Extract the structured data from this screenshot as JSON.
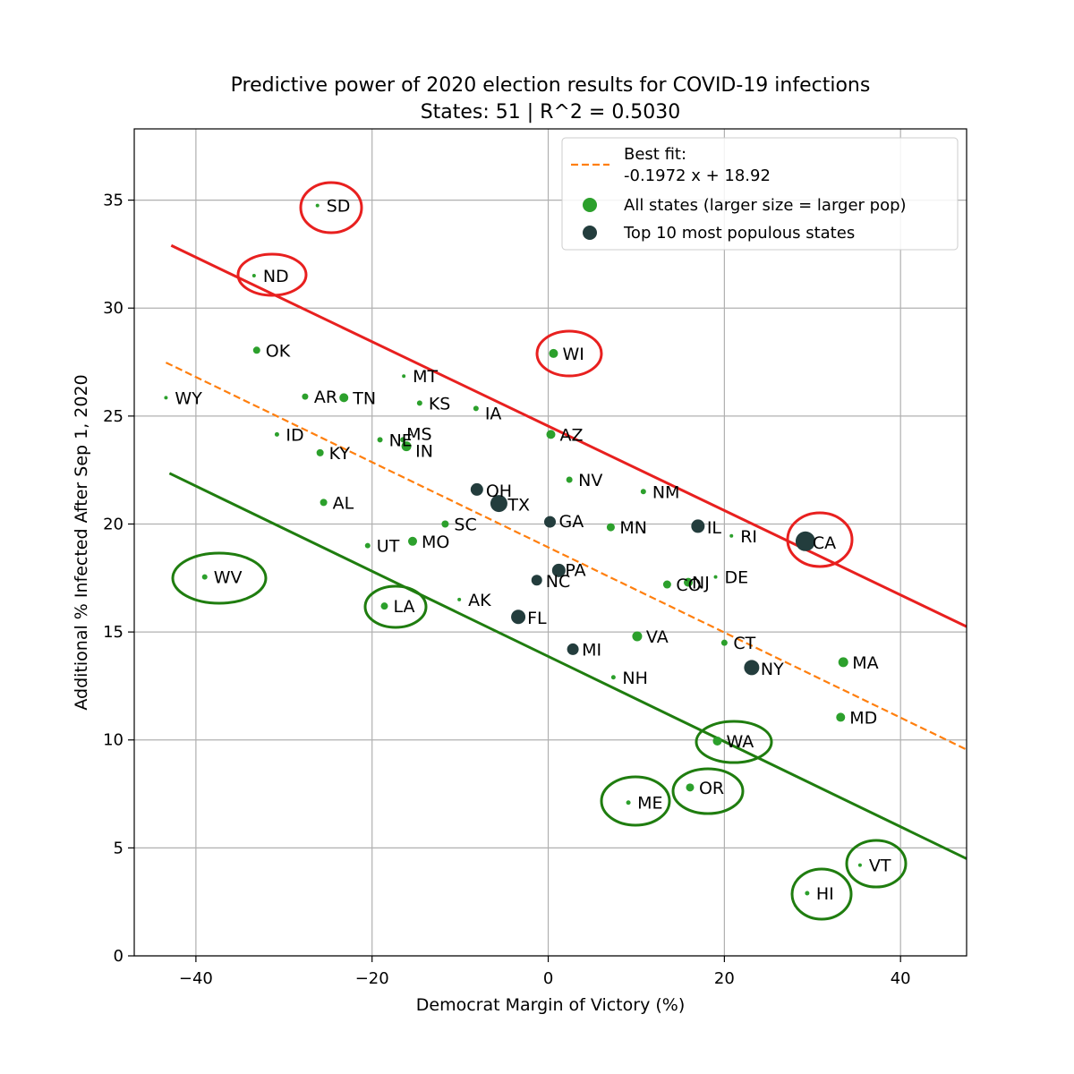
{
  "chart_data": {
    "type": "scatter",
    "title": "Predictive power of 2020 election results for COVID-19 infections",
    "subtitle": "States: 51 | R^2 = 0.5030",
    "xlabel": "Democrat Margin of Victory (%)",
    "ylabel": "Additional % Infected After Sep 1, 2020",
    "xlim": [
      -47,
      47.5
    ],
    "ylim": [
      0,
      38.3
    ],
    "xticks": [
      -40,
      -20,
      0,
      20,
      40
    ],
    "xtick_labels": [
      "−40",
      "−20",
      "0",
      "20",
      "40"
    ],
    "yticks": [
      0,
      5,
      10,
      15,
      20,
      25,
      30,
      35
    ],
    "ytick_labels": [
      "0",
      "5",
      "10",
      "15",
      "20",
      "25",
      "30",
      "35"
    ],
    "grid": true,
    "legend_position": "top-right",
    "legend": {
      "fit_title": "Best fit:",
      "fit_equation": "-0.1972 x + 18.92",
      "all_states": "All states (larger size = larger pop)",
      "top10": "Top 10 most populous states"
    },
    "best_fit": {
      "slope": -0.1972,
      "intercept": 18.92,
      "x_range": [
        -43.4,
        47.5
      ],
      "color": "#ff7f0e"
    },
    "upper_line": {
      "x": [
        -42.8,
        47.5
      ],
      "y": [
        32.9,
        15.25
      ],
      "color": "#e8201f"
    },
    "lower_line": {
      "x": [
        -43.0,
        47.5
      ],
      "y": [
        22.35,
        4.5
      ],
      "color": "#1f7d0f"
    },
    "colors": {
      "all_states": "#2ca02c",
      "top10": "#233d3d",
      "red_annotation": "#e8201f",
      "green_annotation": "#1f7d0f"
    },
    "points": [
      {
        "state": "WY",
        "x": -43.4,
        "y": 25.85,
        "size": 2,
        "top10": false
      },
      {
        "state": "WV",
        "x": -39.0,
        "y": 17.55,
        "size": 3,
        "top10": false
      },
      {
        "state": "ND",
        "x": -33.4,
        "y": 31.5,
        "size": 2,
        "top10": false
      },
      {
        "state": "OK",
        "x": -33.1,
        "y": 28.05,
        "size": 4,
        "top10": false
      },
      {
        "state": "ID",
        "x": -30.8,
        "y": 24.15,
        "size": 2.5,
        "top10": false
      },
      {
        "state": "AR",
        "x": -27.6,
        "y": 25.9,
        "size": 3.5,
        "top10": false
      },
      {
        "state": "SD",
        "x": -26.2,
        "y": 34.75,
        "size": 2,
        "top10": false
      },
      {
        "state": "KY",
        "x": -25.9,
        "y": 23.3,
        "size": 4,
        "top10": false
      },
      {
        "state": "AL",
        "x": -25.5,
        "y": 21.0,
        "size": 4,
        "top10": false
      },
      {
        "state": "TN",
        "x": -23.2,
        "y": 25.85,
        "size": 5,
        "top10": false
      },
      {
        "state": "UT",
        "x": -20.5,
        "y": 19.0,
        "size": 3,
        "top10": false
      },
      {
        "state": "NE",
        "x": -19.1,
        "y": 23.9,
        "size": 3,
        "top10": false
      },
      {
        "state": "LA",
        "x": -18.6,
        "y": 16.2,
        "size": 4,
        "top10": false
      },
      {
        "state": "MT",
        "x": -16.4,
        "y": 26.85,
        "size": 2,
        "top10": false
      },
      {
        "state": "MS",
        "x": -16.5,
        "y": 23.9,
        "size": 3,
        "top10": false
      },
      {
        "state": "IN",
        "x": -16.1,
        "y": 23.6,
        "size": 5.5,
        "top10": false
      },
      {
        "state": "MO",
        "x": -15.4,
        "y": 19.2,
        "size": 5,
        "top10": false
      },
      {
        "state": "KS",
        "x": -14.6,
        "y": 25.6,
        "size": 3,
        "top10": false
      },
      {
        "state": "SC",
        "x": -11.7,
        "y": 20.0,
        "size": 4,
        "top10": false
      },
      {
        "state": "AK",
        "x": -10.1,
        "y": 16.5,
        "size": 2,
        "top10": false
      },
      {
        "state": "IA",
        "x": -8.2,
        "y": 25.35,
        "size": 3,
        "top10": false
      },
      {
        "state": "OH",
        "x": -8.1,
        "y": 21.6,
        "size": 7,
        "top10": true
      },
      {
        "state": "TX",
        "x": -5.6,
        "y": 20.95,
        "size": 9.5,
        "top10": true
      },
      {
        "state": "FL",
        "x": -3.4,
        "y": 15.7,
        "size": 8,
        "top10": true
      },
      {
        "state": "NC",
        "x": -1.3,
        "y": 17.4,
        "size": 6,
        "top10": true
      },
      {
        "state": "GA",
        "x": 0.2,
        "y": 20.1,
        "size": 6.5,
        "top10": true
      },
      {
        "state": "AZ",
        "x": 0.3,
        "y": 24.15,
        "size": 5,
        "top10": false
      },
      {
        "state": "WI",
        "x": 0.6,
        "y": 27.9,
        "size": 5,
        "top10": false
      },
      {
        "state": "PA",
        "x": 1.2,
        "y": 17.85,
        "size": 7.5,
        "top10": true
      },
      {
        "state": "NV",
        "x": 2.4,
        "y": 22.05,
        "size": 3.5,
        "top10": false
      },
      {
        "state": "MI",
        "x": 2.8,
        "y": 14.2,
        "size": 6.5,
        "top10": true
      },
      {
        "state": "MN",
        "x": 7.1,
        "y": 19.85,
        "size": 4.5,
        "top10": false
      },
      {
        "state": "NH",
        "x": 7.4,
        "y": 12.9,
        "size": 2.5,
        "top10": false
      },
      {
        "state": "ME",
        "x": 9.1,
        "y": 7.1,
        "size": 2.5,
        "top10": false
      },
      {
        "state": "VA",
        "x": 10.1,
        "y": 14.8,
        "size": 5.5,
        "top10": false
      },
      {
        "state": "NM",
        "x": 10.8,
        "y": 21.5,
        "size": 3,
        "top10": false
      },
      {
        "state": "CO",
        "x": 13.5,
        "y": 17.2,
        "size": 4.5,
        "top10": false
      },
      {
        "state": "NJ",
        "x": 15.9,
        "y": 17.3,
        "size": 5,
        "top10": false
      },
      {
        "state": "OR",
        "x": 16.1,
        "y": 7.8,
        "size": 4.5,
        "top10": false
      },
      {
        "state": "IL",
        "x": 17.0,
        "y": 19.9,
        "size": 7.5,
        "top10": true
      },
      {
        "state": "DE",
        "x": 19.0,
        "y": 17.55,
        "size": 2,
        "top10": false
      },
      {
        "state": "WA",
        "x": 19.2,
        "y": 9.95,
        "size": 5,
        "top10": false
      },
      {
        "state": "CT",
        "x": 20.0,
        "y": 14.5,
        "size": 3.5,
        "top10": false
      },
      {
        "state": "RI",
        "x": 20.8,
        "y": 19.45,
        "size": 2,
        "top10": false
      },
      {
        "state": "NY",
        "x": 23.1,
        "y": 13.35,
        "size": 8.5,
        "top10": true
      },
      {
        "state": "CA",
        "x": 29.2,
        "y": 19.2,
        "size": 11,
        "top10": true
      },
      {
        "state": "HI",
        "x": 29.4,
        "y": 2.9,
        "size": 2.5,
        "top10": false
      },
      {
        "state": "MD",
        "x": 33.2,
        "y": 11.05,
        "size": 5,
        "top10": false
      },
      {
        "state": "MA",
        "x": 33.5,
        "y": 13.6,
        "size": 5.5,
        "top10": false
      },
      {
        "state": "VT",
        "x": 35.4,
        "y": 4.2,
        "size": 2,
        "top10": false
      }
    ],
    "red_circled": [
      "SD",
      "ND",
      "WI",
      "CA"
    ],
    "green_circled": [
      "WV",
      "LA",
      "WA",
      "ME",
      "OR",
      "VT",
      "HI"
    ]
  }
}
